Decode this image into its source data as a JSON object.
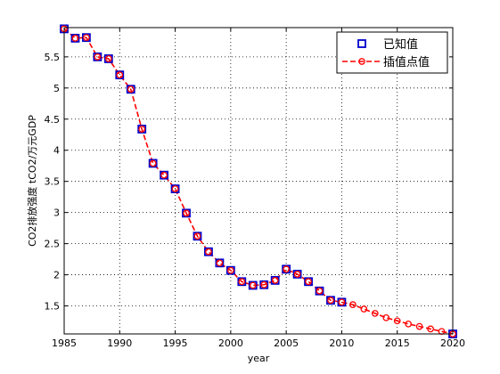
{
  "chart_data": {
    "type": "line",
    "title": "",
    "xlabel": "year",
    "ylabel": "CO2排放强度 tCO2/万元GDP",
    "xlim": [
      1985,
      2020
    ],
    "ylim": [
      1.05,
      5.97
    ],
    "xticks": [
      1985,
      1990,
      1995,
      2000,
      2005,
      2010,
      2015,
      2020
    ],
    "yticks": [
      1.5,
      2,
      2.5,
      3,
      3.5,
      4,
      4.5,
      5,
      5.5
    ],
    "grid": true,
    "legend_position": "top-right",
    "series": [
      {
        "name": "已知值",
        "marker": "square",
        "color": "#0000cc",
        "x": [
          1985,
          1986,
          1987,
          1988,
          1989,
          1990,
          1991,
          1992,
          1993,
          1994,
          1995,
          1996,
          1997,
          1998,
          1999,
          2000,
          2001,
          2002,
          2003,
          2004,
          2005,
          2006,
          2007,
          2008,
          2009,
          2010,
          2020
        ],
        "y": [
          5.95,
          5.8,
          5.81,
          5.5,
          5.47,
          5.21,
          4.98,
          4.34,
          3.79,
          3.6,
          3.38,
          2.99,
          2.62,
          2.37,
          2.19,
          2.07,
          1.89,
          1.83,
          1.84,
          1.91,
          2.09,
          2.01,
          1.89,
          1.74,
          1.59,
          1.56,
          1.05
        ]
      },
      {
        "name": "插值点值",
        "marker": "circle",
        "line_style": "dashed",
        "color": "#ff0000",
        "x": [
          1985,
          1986,
          1987,
          1988,
          1989,
          1990,
          1991,
          1992,
          1993,
          1994,
          1995,
          1996,
          1997,
          1998,
          1999,
          2000,
          2001,
          2002,
          2003,
          2004,
          2005,
          2006,
          2007,
          2008,
          2009,
          2010,
          2011,
          2012,
          2013,
          2014,
          2015,
          2016,
          2017,
          2018,
          2019,
          2020
        ],
        "y": [
          5.95,
          5.8,
          5.81,
          5.5,
          5.47,
          5.21,
          4.98,
          4.34,
          3.79,
          3.6,
          3.38,
          2.99,
          2.62,
          2.37,
          2.19,
          2.07,
          1.89,
          1.83,
          1.84,
          1.91,
          2.09,
          2.01,
          1.89,
          1.74,
          1.59,
          1.56,
          1.52,
          1.45,
          1.38,
          1.31,
          1.26,
          1.21,
          1.17,
          1.13,
          1.09,
          1.05
        ]
      }
    ]
  }
}
